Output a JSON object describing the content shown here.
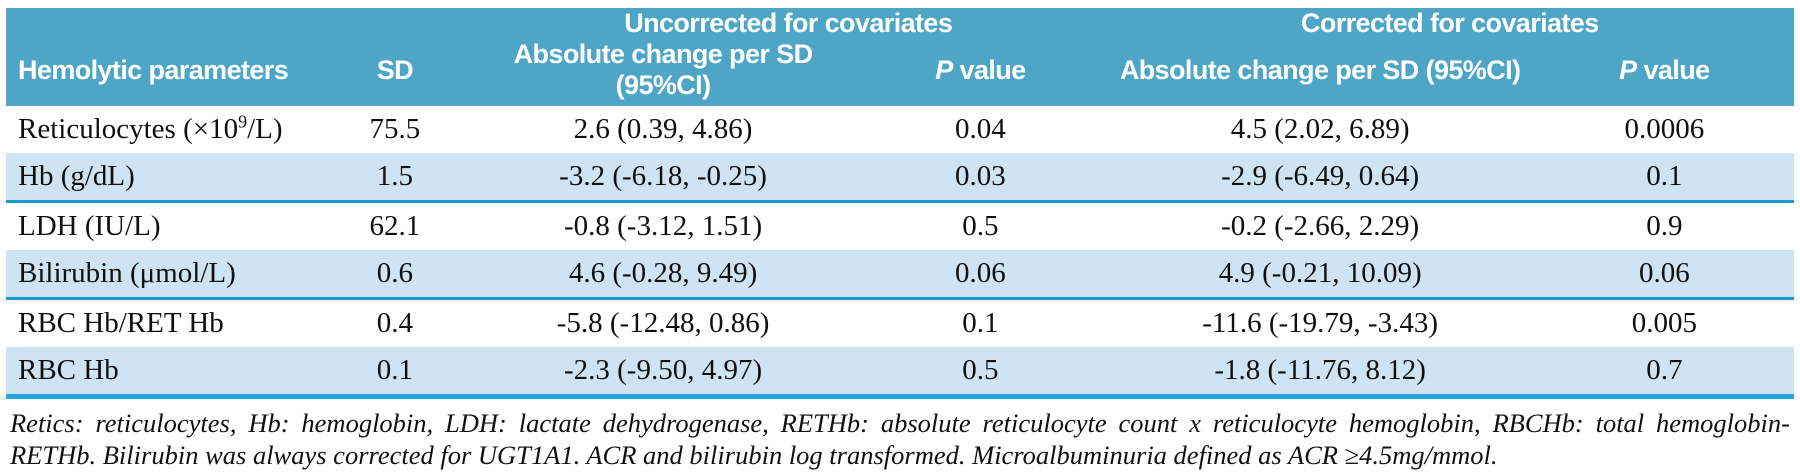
{
  "table": {
    "header": {
      "group_uncorrected": "Uncorrected for covariates",
      "group_corrected": "Corrected for covariates",
      "col_param": "Hemolytic parameters",
      "col_sd": "SD",
      "col_change": "Absolute change per SD (95%CI)",
      "col_p_italic": "P",
      "col_p_rest": " value"
    },
    "rows": [
      {
        "param_pre": "Reticulocytes (×10",
        "param_sup": "9",
        "param_post": "/L)",
        "sd": "75.5",
        "unc_change": "2.6 (0.39, 4.86)",
        "unc_p": "0.04",
        "cor_change": "4.5 (2.02, 6.89)",
        "cor_p": "0.0006"
      },
      {
        "param_pre": "Hb (g/dL)",
        "param_sup": "",
        "param_post": "",
        "sd": "1.5",
        "unc_change": "-3.2 (-6.18, -0.25)",
        "unc_p": "0.03",
        "cor_change": "-2.9 (-6.49, 0.64)",
        "cor_p": "0.1"
      },
      {
        "param_pre": "LDH (IU/L)",
        "param_sup": "",
        "param_post": "",
        "sd": "62.1",
        "unc_change": "-0.8 (-3.12, 1.51)",
        "unc_p": "0.5",
        "cor_change": "-0.2 (-2.66, 2.29)",
        "cor_p": "0.9"
      },
      {
        "param_pre": "Bilirubin (μmol/L)",
        "param_sup": "",
        "param_post": "",
        "sd": "0.6",
        "unc_change": "4.6 (-0.28, 9.49)",
        "unc_p": "0.06",
        "cor_change": "4.9 (-0.21, 10.09)",
        "cor_p": "0.06"
      },
      {
        "param_pre": "RBC Hb/RET Hb",
        "param_sup": "",
        "param_post": "",
        "sd": "0.4",
        "unc_change": "-5.8 (-12.48, 0.86)",
        "unc_p": "0.1",
        "cor_change": "-11.6 (-19.79, -3.43)",
        "cor_p": "0.005"
      },
      {
        "param_pre": "RBC Hb",
        "param_sup": "",
        "param_post": "",
        "sd": "0.1",
        "unc_change": "-2.3 (-9.50, 4.97)",
        "unc_p": "0.5",
        "cor_change": "-1.8 (-11.76, 8.12)",
        "cor_p": "0.7"
      }
    ]
  },
  "footnote": "Retics: reticulocytes, Hb: hemoglobin, LDH: lactate dehydrogenase, RETHb: absolute reticulocyte count x reticulocyte hemoglobin, RBCHb: total hemoglobin-RETHb.  Bilirubin was always corrected for UGT1A1.  ACR and bilirubin log transformed. Microalbuminuria defined as ACR ≥4.5mg/mmol.",
  "colors": {
    "header_bg": "#4DA6C6",
    "row_alt_bg": "#CFE4F2",
    "rule_blue": "#1E96D2",
    "rule_end_blue": "#2BA3DC"
  }
}
